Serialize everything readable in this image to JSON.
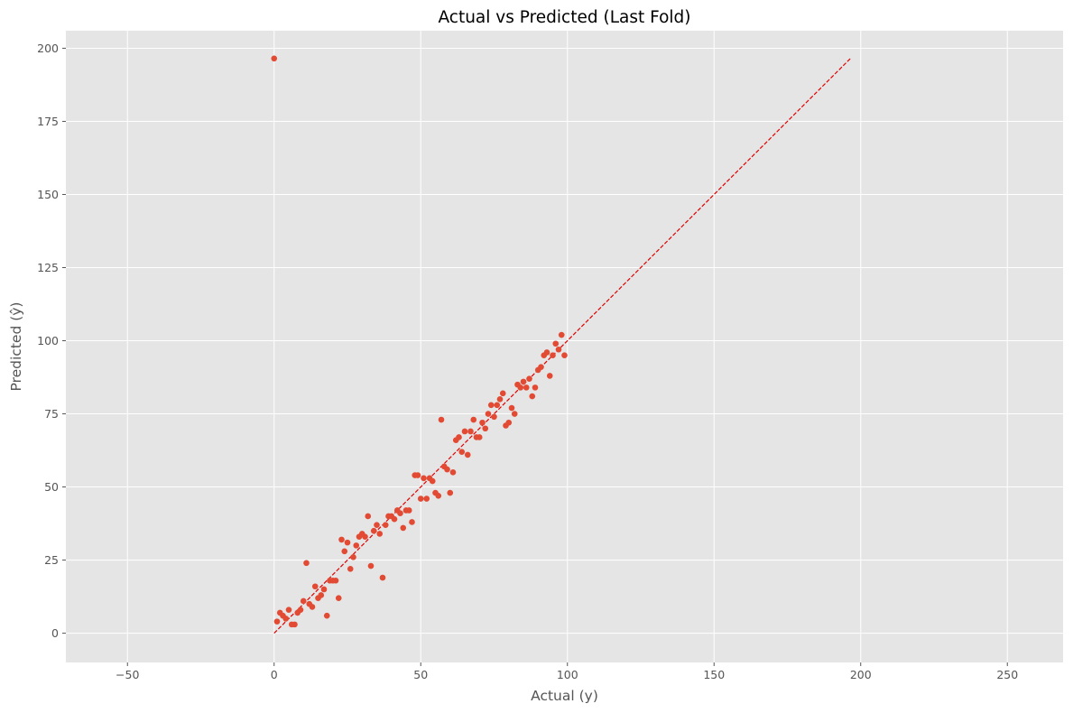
{
  "chart_data": {
    "type": "scatter",
    "title": "Actual vs Predicted (Last Fold)",
    "xlabel": "Actual (y)",
    "ylabel": "Predicted (ŷ)",
    "xlim": [
      -71,
      269
    ],
    "ylim": [
      -10,
      206
    ],
    "xticks": [
      -50,
      0,
      50,
      100,
      150,
      200,
      250
    ],
    "yticks": [
      0,
      25,
      50,
      75,
      100,
      125,
      150,
      175,
      200
    ],
    "xtick_labels": [
      "−50",
      "0",
      "50",
      "100",
      "150",
      "200",
      "250"
    ],
    "ytick_labels": [
      "0",
      "25",
      "50",
      "75",
      "100",
      "125",
      "150",
      "175",
      "200"
    ],
    "grid": true,
    "style": "ggplot",
    "colors": {
      "background": "#e5e5e5",
      "grid": "#ffffff",
      "points": "#e24a33",
      "reference_line": "#e00000"
    },
    "reference_line": {
      "style": "dashed",
      "x": [
        0,
        196.5
      ],
      "y": [
        0,
        196.5
      ]
    },
    "points": [
      [
        0,
        196.5
      ],
      [
        1,
        4
      ],
      [
        2,
        7
      ],
      [
        3,
        6
      ],
      [
        4,
        5
      ],
      [
        5,
        8
      ],
      [
        6,
        3
      ],
      [
        7,
        3
      ],
      [
        8,
        7
      ],
      [
        9,
        8
      ],
      [
        10,
        11
      ],
      [
        11,
        24
      ],
      [
        12,
        10
      ],
      [
        13,
        9
      ],
      [
        14,
        16
      ],
      [
        15,
        12
      ],
      [
        16,
        13
      ],
      [
        17,
        15
      ],
      [
        18,
        6
      ],
      [
        19,
        18
      ],
      [
        20,
        18
      ],
      [
        21,
        18
      ],
      [
        22,
        12
      ],
      [
        23,
        32
      ],
      [
        24,
        28
      ],
      [
        25,
        31
      ],
      [
        26,
        22
      ],
      [
        27,
        26
      ],
      [
        28,
        30
      ],
      [
        29,
        33
      ],
      [
        30,
        34
      ],
      [
        31,
        33
      ],
      [
        32,
        40
      ],
      [
        33,
        23
      ],
      [
        34,
        35
      ],
      [
        35,
        37
      ],
      [
        36,
        34
      ],
      [
        37,
        19
      ],
      [
        38,
        37
      ],
      [
        39,
        40
      ],
      [
        40,
        40
      ],
      [
        41,
        39
      ],
      [
        42,
        42
      ],
      [
        43,
        41
      ],
      [
        44,
        36
      ],
      [
        45,
        42
      ],
      [
        46,
        42
      ],
      [
        47,
        38
      ],
      [
        48,
        54
      ],
      [
        49,
        54
      ],
      [
        50,
        46
      ],
      [
        51,
        53
      ],
      [
        52,
        46
      ],
      [
        53,
        53
      ],
      [
        54,
        52
      ],
      [
        55,
        48
      ],
      [
        56,
        47
      ],
      [
        57,
        73
      ],
      [
        58,
        57
      ],
      [
        59,
        56
      ],
      [
        60,
        48
      ],
      [
        61,
        55
      ],
      [
        62,
        66
      ],
      [
        63,
        67
      ],
      [
        64,
        62
      ],
      [
        65,
        69
      ],
      [
        66,
        61
      ],
      [
        67,
        69
      ],
      [
        68,
        73
      ],
      [
        69,
        67
      ],
      [
        70,
        67
      ],
      [
        71,
        72
      ],
      [
        72,
        70
      ],
      [
        73,
        75
      ],
      [
        74,
        78
      ],
      [
        75,
        74
      ],
      [
        76,
        78
      ],
      [
        77,
        80
      ],
      [
        78,
        82
      ],
      [
        79,
        71
      ],
      [
        80,
        72
      ],
      [
        81,
        77
      ],
      [
        82,
        75
      ],
      [
        83,
        85
      ],
      [
        84,
        84
      ],
      [
        85,
        86
      ],
      [
        86,
        84
      ],
      [
        87,
        87
      ],
      [
        88,
        81
      ],
      [
        89,
        84
      ],
      [
        90,
        90
      ],
      [
        91,
        91
      ],
      [
        92,
        95
      ],
      [
        93,
        96
      ],
      [
        94,
        88
      ],
      [
        95,
        95
      ],
      [
        96,
        99
      ],
      [
        97,
        97
      ],
      [
        98,
        102
      ],
      [
        99,
        95
      ]
    ]
  }
}
